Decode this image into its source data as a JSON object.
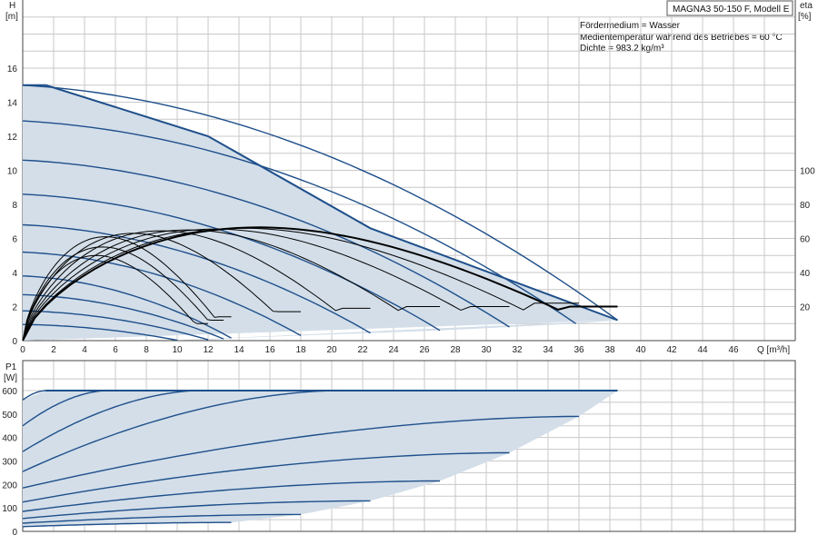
{
  "chart_data": [
    {
      "type": "line",
      "name_box": "MAGNA3 50-150 F, Modell E",
      "annotations": [
        "Fördermedium = Wasser",
        "Medientemperatur während des Betriebes = 60 °C",
        "Dichte = 983.2 kg/m³"
      ],
      "ylabel": "H",
      "yunit": "[m]",
      "y2label": "eta",
      "y2unit": "[%]",
      "xlabel": "Q [m³/h]",
      "xlim": [
        0,
        50
      ],
      "ylim": [
        0,
        18.5
      ],
      "y2lim": [
        0,
        140
      ],
      "xticks": [
        0,
        2,
        4,
        6,
        8,
        10,
        12,
        14,
        16,
        18,
        20,
        22,
        24,
        26,
        28,
        30,
        32,
        34,
        36,
        38,
        40,
        42,
        44,
        46
      ],
      "yticks": [
        0,
        2,
        4,
        6,
        8,
        10,
        12,
        14,
        16
      ],
      "y2ticks": [
        20,
        40,
        60,
        80,
        100
      ],
      "grid": true,
      "head_curves": [
        {
          "h0": 15.0,
          "qmax": 38.5,
          "hend": 1.2
        },
        {
          "h0": 12.9,
          "qmax": 35.8,
          "hend": 1.0
        },
        {
          "h0": 10.6,
          "qmax": 31.5,
          "hend": 0.8
        },
        {
          "h0": 8.6,
          "qmax": 27.0,
          "hend": 0.6
        },
        {
          "h0": 6.8,
          "qmax": 22.5,
          "hend": 0.45
        },
        {
          "h0": 5.2,
          "qmax": 18.0,
          "hend": 0.3
        },
        {
          "h0": 3.8,
          "qmax": 13.5,
          "hend": 0.15
        },
        {
          "h0": 2.7,
          "qmax": 13.0,
          "hend": 0.1
        },
        {
          "h0": 1.75,
          "qmax": 12.0,
          "hend": 0.05
        },
        {
          "h0": 0.95,
          "qmax": 10.0,
          "hend": 0.02
        }
      ],
      "max_curve": [
        [
          0,
          15.0
        ],
        [
          1.5,
          15.0
        ],
        [
          12,
          12.0
        ],
        [
          22.5,
          6.6
        ],
        [
          38.5,
          1.2
        ]
      ],
      "efficiency_curves": [
        {
          "qmax": 38.5,
          "eta_end": 20,
          "peak": 66.5,
          "width": 2
        },
        {
          "qmax": 36.0,
          "eta_end": 22,
          "peak": 66.0,
          "width": 1
        },
        {
          "qmax": 31.5,
          "eta_end": 20,
          "peak": 65.5,
          "width": 1
        },
        {
          "qmax": 27.0,
          "eta_end": 20,
          "peak": 65.0,
          "width": 1
        },
        {
          "qmax": 22.5,
          "eta_end": 19,
          "peak": 64.5,
          "width": 1
        },
        {
          "qmax": 18.0,
          "eta_end": 17,
          "peak": 63.0,
          "width": 1
        },
        {
          "qmax": 13.5,
          "eta_end": 14,
          "peak": 61.0,
          "width": 1
        },
        {
          "qmax": 13.0,
          "eta_end": 12,
          "peak": 55.0,
          "width": 1
        },
        {
          "qmax": 12.0,
          "eta_end": 10,
          "peak": 50.0,
          "width": 1
        }
      ]
    },
    {
      "type": "line",
      "ylabel": "P1",
      "yunit": "[W]",
      "xlim": [
        0,
        50
      ],
      "ylim": [
        0,
        650
      ],
      "yticks": [
        0,
        100,
        200,
        300,
        400,
        500,
        600
      ],
      "grid": true,
      "max_power": 600,
      "power_curves": [
        {
          "p0": 560,
          "qmax": 1.5,
          "pend": 600
        },
        {
          "p0": 450,
          "qmax": 5.5,
          "pend": 600
        },
        {
          "p0": 340,
          "qmax": 11.5,
          "pend": 600
        },
        {
          "p0": 255,
          "qmax": 20.5,
          "pend": 600
        },
        {
          "p0": 185,
          "qmax": 36.0,
          "pend": 490
        },
        {
          "p0": 125,
          "qmax": 31.5,
          "pend": 335
        },
        {
          "p0": 85,
          "qmax": 27.0,
          "pend": 215
        },
        {
          "p0": 55,
          "qmax": 22.5,
          "pend": 130
        },
        {
          "p0": 35,
          "qmax": 18.0,
          "pend": 72
        },
        {
          "p0": 20,
          "qmax": 13.5,
          "pend": 38
        }
      ],
      "envelope": [
        [
          0,
          560
        ],
        [
          1.5,
          600
        ],
        [
          38.5,
          600
        ],
        [
          36,
          490
        ],
        [
          31.5,
          335
        ],
        [
          27,
          215
        ],
        [
          22.5,
          130
        ],
        [
          18,
          72
        ],
        [
          13.5,
          38
        ],
        [
          0,
          20
        ]
      ]
    }
  ]
}
